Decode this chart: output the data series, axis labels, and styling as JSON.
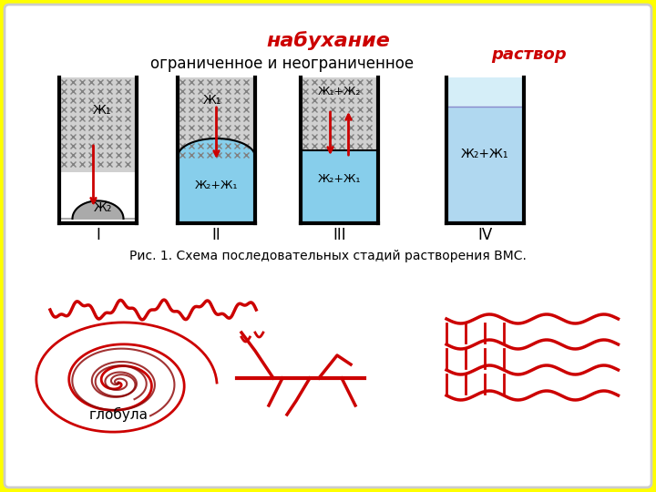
{
  "bg_color": "#FFFF00",
  "panel_bg": "#FFFFFF",
  "title": "набухание",
  "subtitle": "ограниченное и неограниченное",
  "rastvор": "раствор",
  "caption": "Рис. 1. Схема последовательных стадий растворения ВМС.",
  "globula": "глобула",
  "container_color": "#000000",
  "hatch_color": "#999999",
  "blue_color": "#87CEEB",
  "light_blue": "#ADD8E6",
  "red_color": "#CC0000",
  "dark_red": "#8B0000"
}
